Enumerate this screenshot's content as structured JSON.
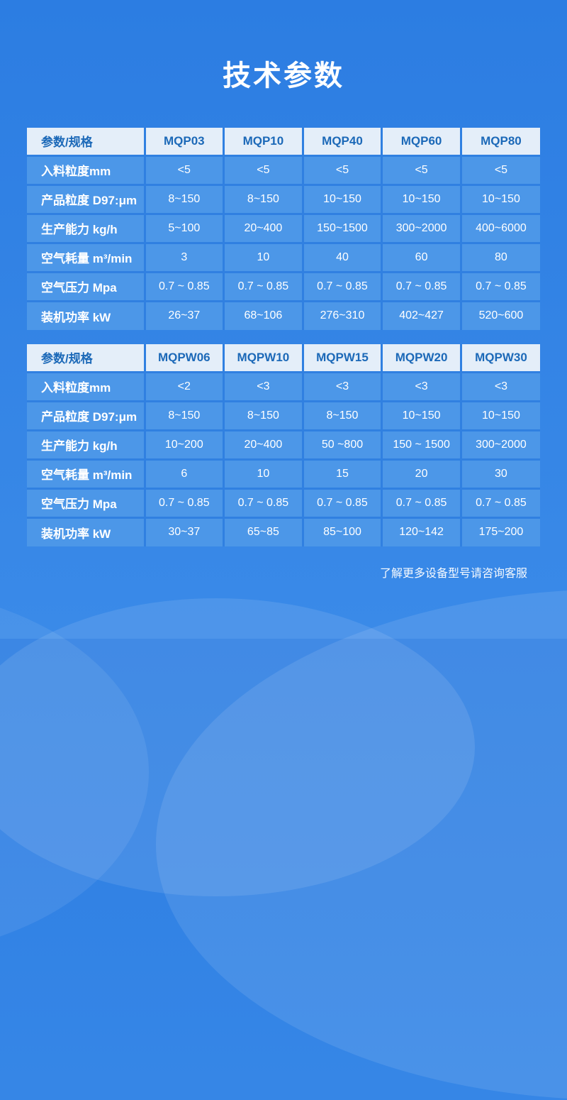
{
  "page": {
    "title": "技术参数",
    "footer_note": "了解更多设备型号请咨询客服"
  },
  "colors": {
    "page_bg_top": "#2C7DE2",
    "page_bg_bottom": "#3A8AE8",
    "grid_line": "#3080E1",
    "header_bg": "#E4EEF9",
    "header_text": "#1C69B8",
    "cell_bg": "#4C97E8",
    "cell_text": "#FFFFFF"
  },
  "tables": [
    {
      "columns": [
        "参数/规格",
        "MQP03",
        "MQP10",
        "MQP40",
        "MQP60",
        "MQP80"
      ],
      "rows": [
        {
          "label": "入料粒度mm",
          "values": [
            "<5",
            "<5",
            "<5",
            "<5",
            "<5"
          ]
        },
        {
          "label": "产品粒度 D97:μm",
          "values": [
            "8~150",
            "8~150",
            "10~150",
            "10~150",
            "10~150"
          ]
        },
        {
          "label": "生产能力 kg/h",
          "values": [
            "5~100",
            "20~400",
            "150~1500",
            "300~2000",
            "400~6000"
          ]
        },
        {
          "label": "空气耗量 m³/min",
          "values": [
            "3",
            "10",
            "40",
            "60",
            "80"
          ]
        },
        {
          "label": "空气压力 Mpa",
          "values": [
            "0.7 ~ 0.85",
            "0.7 ~ 0.85",
            "0.7 ~ 0.85",
            "0.7 ~ 0.85",
            "0.7 ~ 0.85"
          ]
        },
        {
          "label": "装机功率 kW",
          "values": [
            "26~37",
            "68~106",
            "276~310",
            "402~427",
            "520~600"
          ]
        }
      ]
    },
    {
      "columns": [
        "参数/规格",
        "MQPW06",
        "MQPW10",
        "MQPW15",
        "MQPW20",
        "MQPW30"
      ],
      "rows": [
        {
          "label": "入料粒度mm",
          "values": [
            "<2",
            "<3",
            "<3",
            "<3",
            "<3"
          ]
        },
        {
          "label": "产品粒度 D97:μm",
          "values": [
            "8~150",
            "8~150",
            "8~150",
            "10~150",
            "10~150"
          ]
        },
        {
          "label": "生产能力 kg/h",
          "values": [
            "10~200",
            "20~400",
            "50 ~800",
            "150 ~ 1500",
            "300~2000"
          ]
        },
        {
          "label": "空气耗量 m³/min",
          "values": [
            "6",
            "10",
            "15",
            "20",
            "30"
          ]
        },
        {
          "label": "空气压力 Mpa",
          "values": [
            "0.7 ~ 0.85",
            "0.7 ~ 0.85",
            "0.7 ~ 0.85",
            "0.7 ~ 0.85",
            "0.7 ~ 0.85"
          ]
        },
        {
          "label": "装机功率 kW",
          "values": [
            "30~37",
            "65~85",
            "85~100",
            "120~142",
            "175~200"
          ]
        }
      ]
    }
  ]
}
